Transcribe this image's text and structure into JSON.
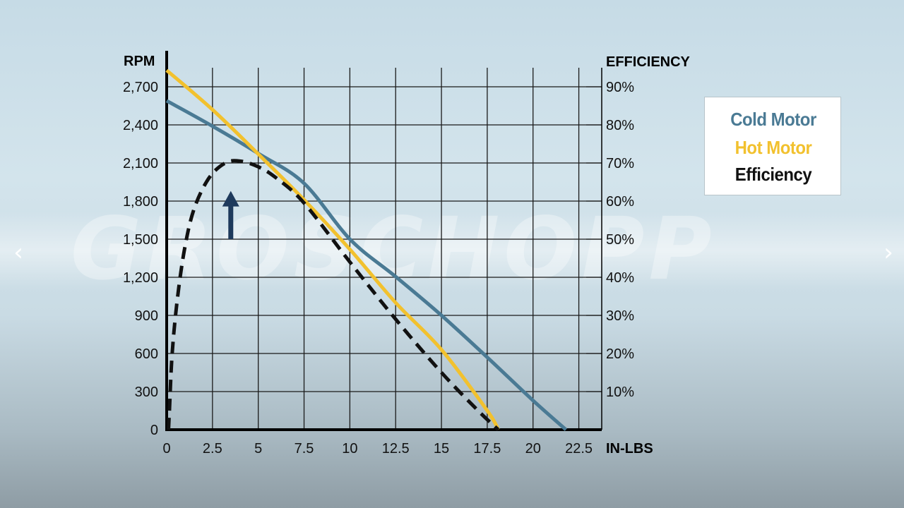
{
  "watermark": "GROSCHOPP",
  "chart_data": {
    "type": "line",
    "xlabel": "IN-LBS",
    "ylabel": "RPM",
    "y2label": "EFFICIENCY",
    "xlim": [
      0,
      23.75
    ],
    "ylim": [
      0,
      2850
    ],
    "y2lim": [
      0,
      95
    ],
    "x_ticks": [
      0,
      2.5,
      5,
      7.5,
      10,
      12.5,
      15,
      17.5,
      20,
      22.5
    ],
    "x_tick_labels": [
      "0",
      "2.5",
      "5",
      "7.5",
      "10",
      "12.5",
      "15",
      "17.5",
      "20",
      "22.5"
    ],
    "y_ticks": [
      0,
      300,
      600,
      900,
      1200,
      1500,
      1800,
      2100,
      2400,
      2700
    ],
    "y_tick_labels": [
      "0",
      "300",
      "600",
      "900",
      "1,200",
      "1,500",
      "1,800",
      "2,100",
      "2,400",
      "2,700"
    ],
    "y2_ticks": [
      10,
      20,
      30,
      40,
      50,
      60,
      70,
      80,
      90
    ],
    "y2_tick_labels": [
      "10%",
      "20%",
      "30%",
      "40%",
      "50%",
      "60%",
      "70%",
      "80%",
      "90%"
    ],
    "grid": true,
    "legend_position": "right",
    "series": [
      {
        "name": "Cold Motor",
        "axis": "left",
        "color": "#4a7a94",
        "style": "solid",
        "x": [
          0,
          2.5,
          5,
          7.5,
          10,
          12.5,
          15,
          17.5,
          20,
          21.8
        ],
        "y": [
          2590,
          2390,
          2175,
          1940,
          1500,
          1205,
          900,
          570,
          230,
          0
        ]
      },
      {
        "name": "Hot Motor",
        "axis": "left",
        "color": "#f2c12e",
        "style": "solid",
        "x": [
          0,
          2.5,
          5,
          7.5,
          10,
          12.5,
          15,
          17.5,
          18.1
        ],
        "y": [
          2830,
          2520,
          2170,
          1810,
          1420,
          1000,
          630,
          150,
          0
        ]
      },
      {
        "name": "Efficiency",
        "axis": "right",
        "color": "#111111",
        "style": "dashed",
        "x": [
          0.1,
          0.15,
          0.3,
          0.6,
          1.0,
          1.5,
          2.3,
          3.2,
          4.0,
          5.0,
          6.0,
          7.5,
          10,
          12.5,
          15,
          17.0,
          18.1
        ],
        "y": [
          0,
          5,
          20,
          35,
          48,
          58,
          66,
          70,
          70.5,
          69,
          66,
          59.5,
          44,
          29,
          15,
          5,
          0
        ]
      }
    ],
    "annotations": [
      {
        "type": "arrow",
        "direction": "up",
        "color": "#1e3a5c",
        "x": 3.5,
        "y_from": 1500,
        "y_to": 1880
      }
    ]
  }
}
